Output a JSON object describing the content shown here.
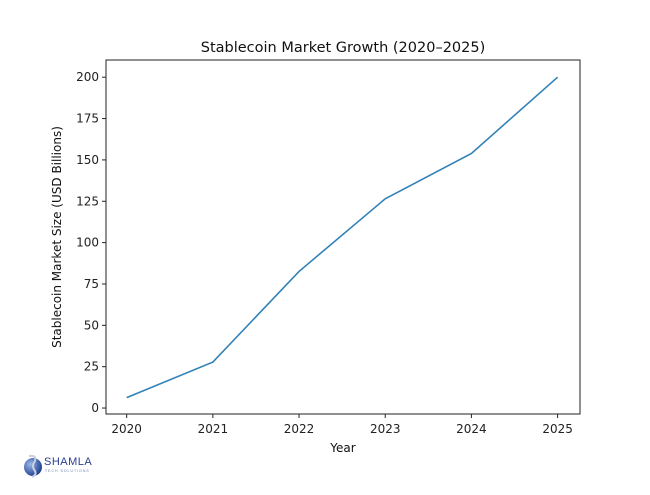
{
  "chart_data": {
    "type": "line",
    "title": "Stablecoin Market Growth (2020–2025)",
    "xlabel": "Year",
    "ylabel": "Stablecoin Market Size (USD Billions)",
    "x": [
      2020,
      2021,
      2022,
      2023,
      2024,
      2025
    ],
    "x_tick_labels": [
      "2020",
      "2021",
      "2022",
      "2023",
      "2024",
      "2025"
    ],
    "y_ticks": [
      0,
      25,
      50,
      75,
      100,
      125,
      150,
      175,
      200
    ],
    "y_tick_labels": [
      "0",
      "25",
      "50",
      "75",
      "100",
      "125",
      "150",
      "175",
      "200"
    ],
    "series": [
      {
        "values": [
          6.3,
          27.8,
          82.6,
          126.5,
          153.9,
          200
        ],
        "color": "#3282b8"
      }
    ],
    "xlim": [
      2019.76,
      2025.26
    ],
    "ylim": [
      -3.6,
      210.4
    ],
    "grid": false
  },
  "logo": {
    "name": "SHAMLA",
    "tagline": "TECH SOLUTIONS"
  }
}
